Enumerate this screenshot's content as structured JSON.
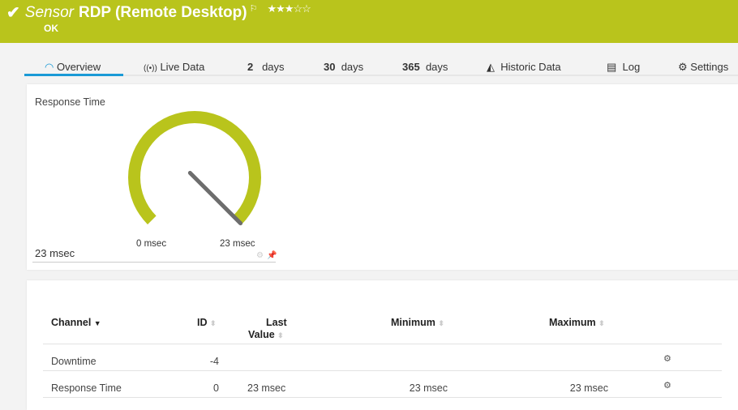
{
  "header": {
    "check_icon": "check-icon",
    "type_label": "Sensor",
    "title": "RDP (Remote Desktop)",
    "flag_icon": "flag-icon",
    "priority_stars": 3,
    "priority_max": 5,
    "status": "OK",
    "color": "#b9c41c"
  },
  "tabs": [
    {
      "label": "Overview",
      "icon": "gauge-icon",
      "active": true
    },
    {
      "label": "Live Data",
      "icon": "broadcast-icon"
    },
    {
      "num": "2",
      "label": "days"
    },
    {
      "num": "30",
      "label": "days"
    },
    {
      "num": "365",
      "label": "days"
    },
    {
      "label": "Historic Data",
      "icon": "area-chart-icon"
    },
    {
      "label": "Log",
      "icon": "log-icon"
    },
    {
      "label": "Settings",
      "icon": "gear-icon"
    }
  ],
  "gauge": {
    "title": "Response Time",
    "value_label": "23 msec",
    "min_label": "0 msec",
    "max_label": "23 msec",
    "value": 23,
    "min": 0,
    "max": 23,
    "color": "#b9c41c"
  },
  "table": {
    "headers": {
      "channel": "Channel",
      "id": "ID",
      "last_1": "Last",
      "last_2": "Value",
      "minimum": "Minimum",
      "maximum": "Maximum"
    },
    "rows": [
      {
        "channel": "Downtime",
        "id": "-4",
        "last": "",
        "minimum": "",
        "maximum": ""
      },
      {
        "channel": "Response Time",
        "id": "0",
        "last": "23 msec",
        "minimum": "23 msec",
        "maximum": "23 msec"
      }
    ]
  }
}
